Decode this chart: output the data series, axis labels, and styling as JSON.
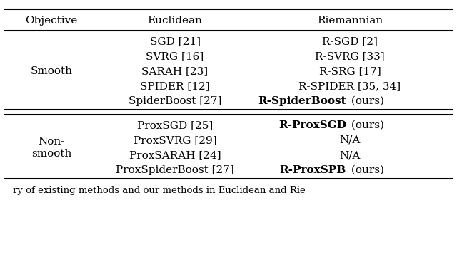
{
  "title_row": [
    "Objective",
    "Euclidean",
    "Riemannian"
  ],
  "smooth_rows": [
    [
      "SGD [21]",
      "R-SGD [2]",
      false
    ],
    [
      "SVRG [16]",
      "R-SVRG [33]",
      false
    ],
    [
      "SARAH [23]",
      "R-SRG [17]",
      false
    ],
    [
      "SPIDER [12]",
      "R-SPIDER [35, 34]",
      false
    ],
    [
      "SpiderBoost [27]",
      "R-SpiderBoost",
      true
    ]
  ],
  "smooth_label": "Smooth",
  "nonsmooth_rows": [
    [
      "ProxSGD [25]",
      "R-ProxSGD",
      true
    ],
    [
      "ProxSVRG [29]",
      "N/A",
      false
    ],
    [
      "ProxSARAH [24]",
      "N/A",
      false
    ],
    [
      "ProxSpiderBoost [27]",
      "R-ProxSPB",
      true
    ]
  ],
  "nonsmooth_label": "Non-\nsmooth",
  "caption": "ry of existing methods and our methods in Euclidean and Rie",
  "bg_color": "#ffffff",
  "text_color": "#000000",
  "font_size": 11.0,
  "caption_font_size": 9.5
}
